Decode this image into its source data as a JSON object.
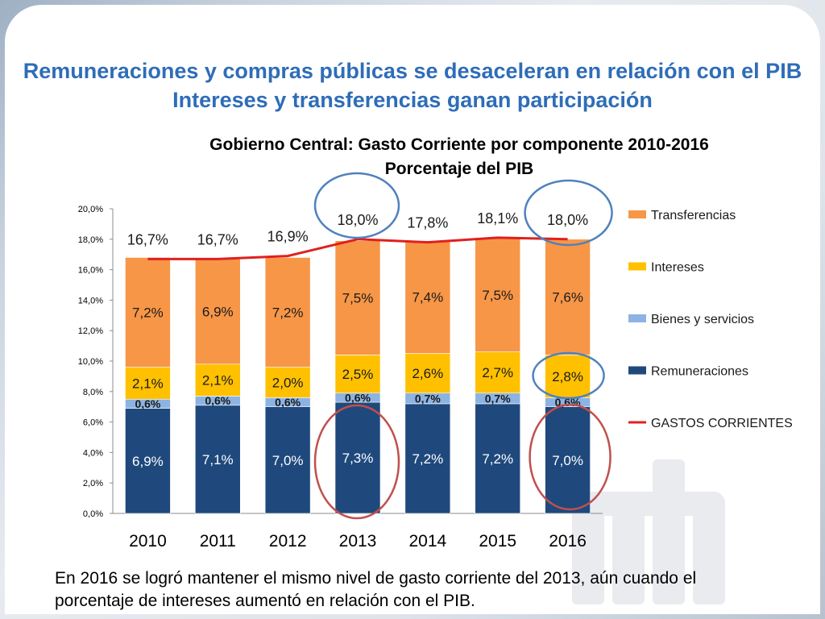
{
  "headline": {
    "line1": "Remuneraciones y compras públicas se desaceleran en relación con el PIB",
    "line2": "Intereses y transferencias ganan participación"
  },
  "chart_title": {
    "line1": "Gobierno Central: Gasto Corriente por componente 2010-2016",
    "line2": "Porcentaje del PIB"
  },
  "footnote": "En 2016 se logró mantener el mismo nivel de gasto corriente del 2013, aún cuando el porcentaje de intereses aumentó en relación con el PIB.",
  "chart_data": {
    "type": "bar",
    "stacked": true,
    "title": "Gobierno Central: Gasto Corriente por componente 2010-2016",
    "subtitle": "Porcentaje del PIB",
    "categories": [
      "2010",
      "2011",
      "2012",
      "2013",
      "2014",
      "2015",
      "2016"
    ],
    "yticks": [
      "0,0%",
      "2,0%",
      "4,0%",
      "6,0%",
      "8,0%",
      "10,0%",
      "12,0%",
      "14,0%",
      "16,0%",
      "18,0%",
      "20,0%"
    ],
    "ylim": [
      0,
      20
    ],
    "grid": false,
    "legend_position": "right",
    "series": [
      {
        "name": "Remuneraciones",
        "color": "#1f497d",
        "values": [
          6.9,
          7.1,
          7.0,
          7.3,
          7.2,
          7.2,
          7.0
        ],
        "labels": [
          "6,9%",
          "7,1%",
          "7,0%",
          "7,3%",
          "7,2%",
          "7,2%",
          "7,0%"
        ]
      },
      {
        "name": "Bienes y servicios",
        "color": "#8db3e2",
        "values": [
          0.6,
          0.6,
          0.6,
          0.6,
          0.7,
          0.7,
          0.6
        ],
        "labels": [
          "0,6%",
          "0,6%",
          "0,6%",
          "0,6%",
          "0,7%",
          "0,7%",
          "0,6%"
        ]
      },
      {
        "name": "Intereses",
        "color": "#ffc000",
        "values": [
          2.1,
          2.1,
          2.0,
          2.5,
          2.6,
          2.7,
          2.8
        ],
        "labels": [
          "2,1%",
          "2,1%",
          "2,0%",
          "2,5%",
          "2,6%",
          "2,7%",
          "2,8%"
        ]
      },
      {
        "name": "Transferencias",
        "color": "#f79646",
        "values": [
          7.2,
          6.9,
          7.2,
          7.5,
          7.4,
          7.5,
          7.6
        ],
        "labels": [
          "7,2%",
          "6,9%",
          "7,2%",
          "7,5%",
          "7,4%",
          "7,5%",
          "7,6%"
        ]
      }
    ],
    "line_series": {
      "name": "GASTOS CORRIENTES",
      "color": "#e0201f",
      "values": [
        16.7,
        16.7,
        16.9,
        18.0,
        17.8,
        18.1,
        18.0
      ],
      "labels": [
        "16,7%",
        "16,7%",
        "16,9%",
        "18,0%",
        "17,8%",
        "18,1%",
        "18,0%"
      ]
    },
    "legend_order": [
      "Transferencias",
      "Intereses",
      "Bienes y servicios",
      "Remuneraciones",
      "GASTOS CORRIENTES"
    ],
    "highlights": {
      "blue_circles": [
        "2013 total",
        "2016 total",
        "2016 Intereses"
      ],
      "red_circles": [
        "2013 Remuneraciones",
        "2016 Remuneraciones"
      ],
      "blue_color": "#4f81bd",
      "red_color": "#c0504d"
    }
  },
  "colors": {
    "headline": "#2e6db8",
    "remuneraciones": "#1f497d",
    "bienes": "#8db3e2",
    "intereses": "#ffc000",
    "transferencias": "#f79646",
    "line": "#e0201f"
  }
}
